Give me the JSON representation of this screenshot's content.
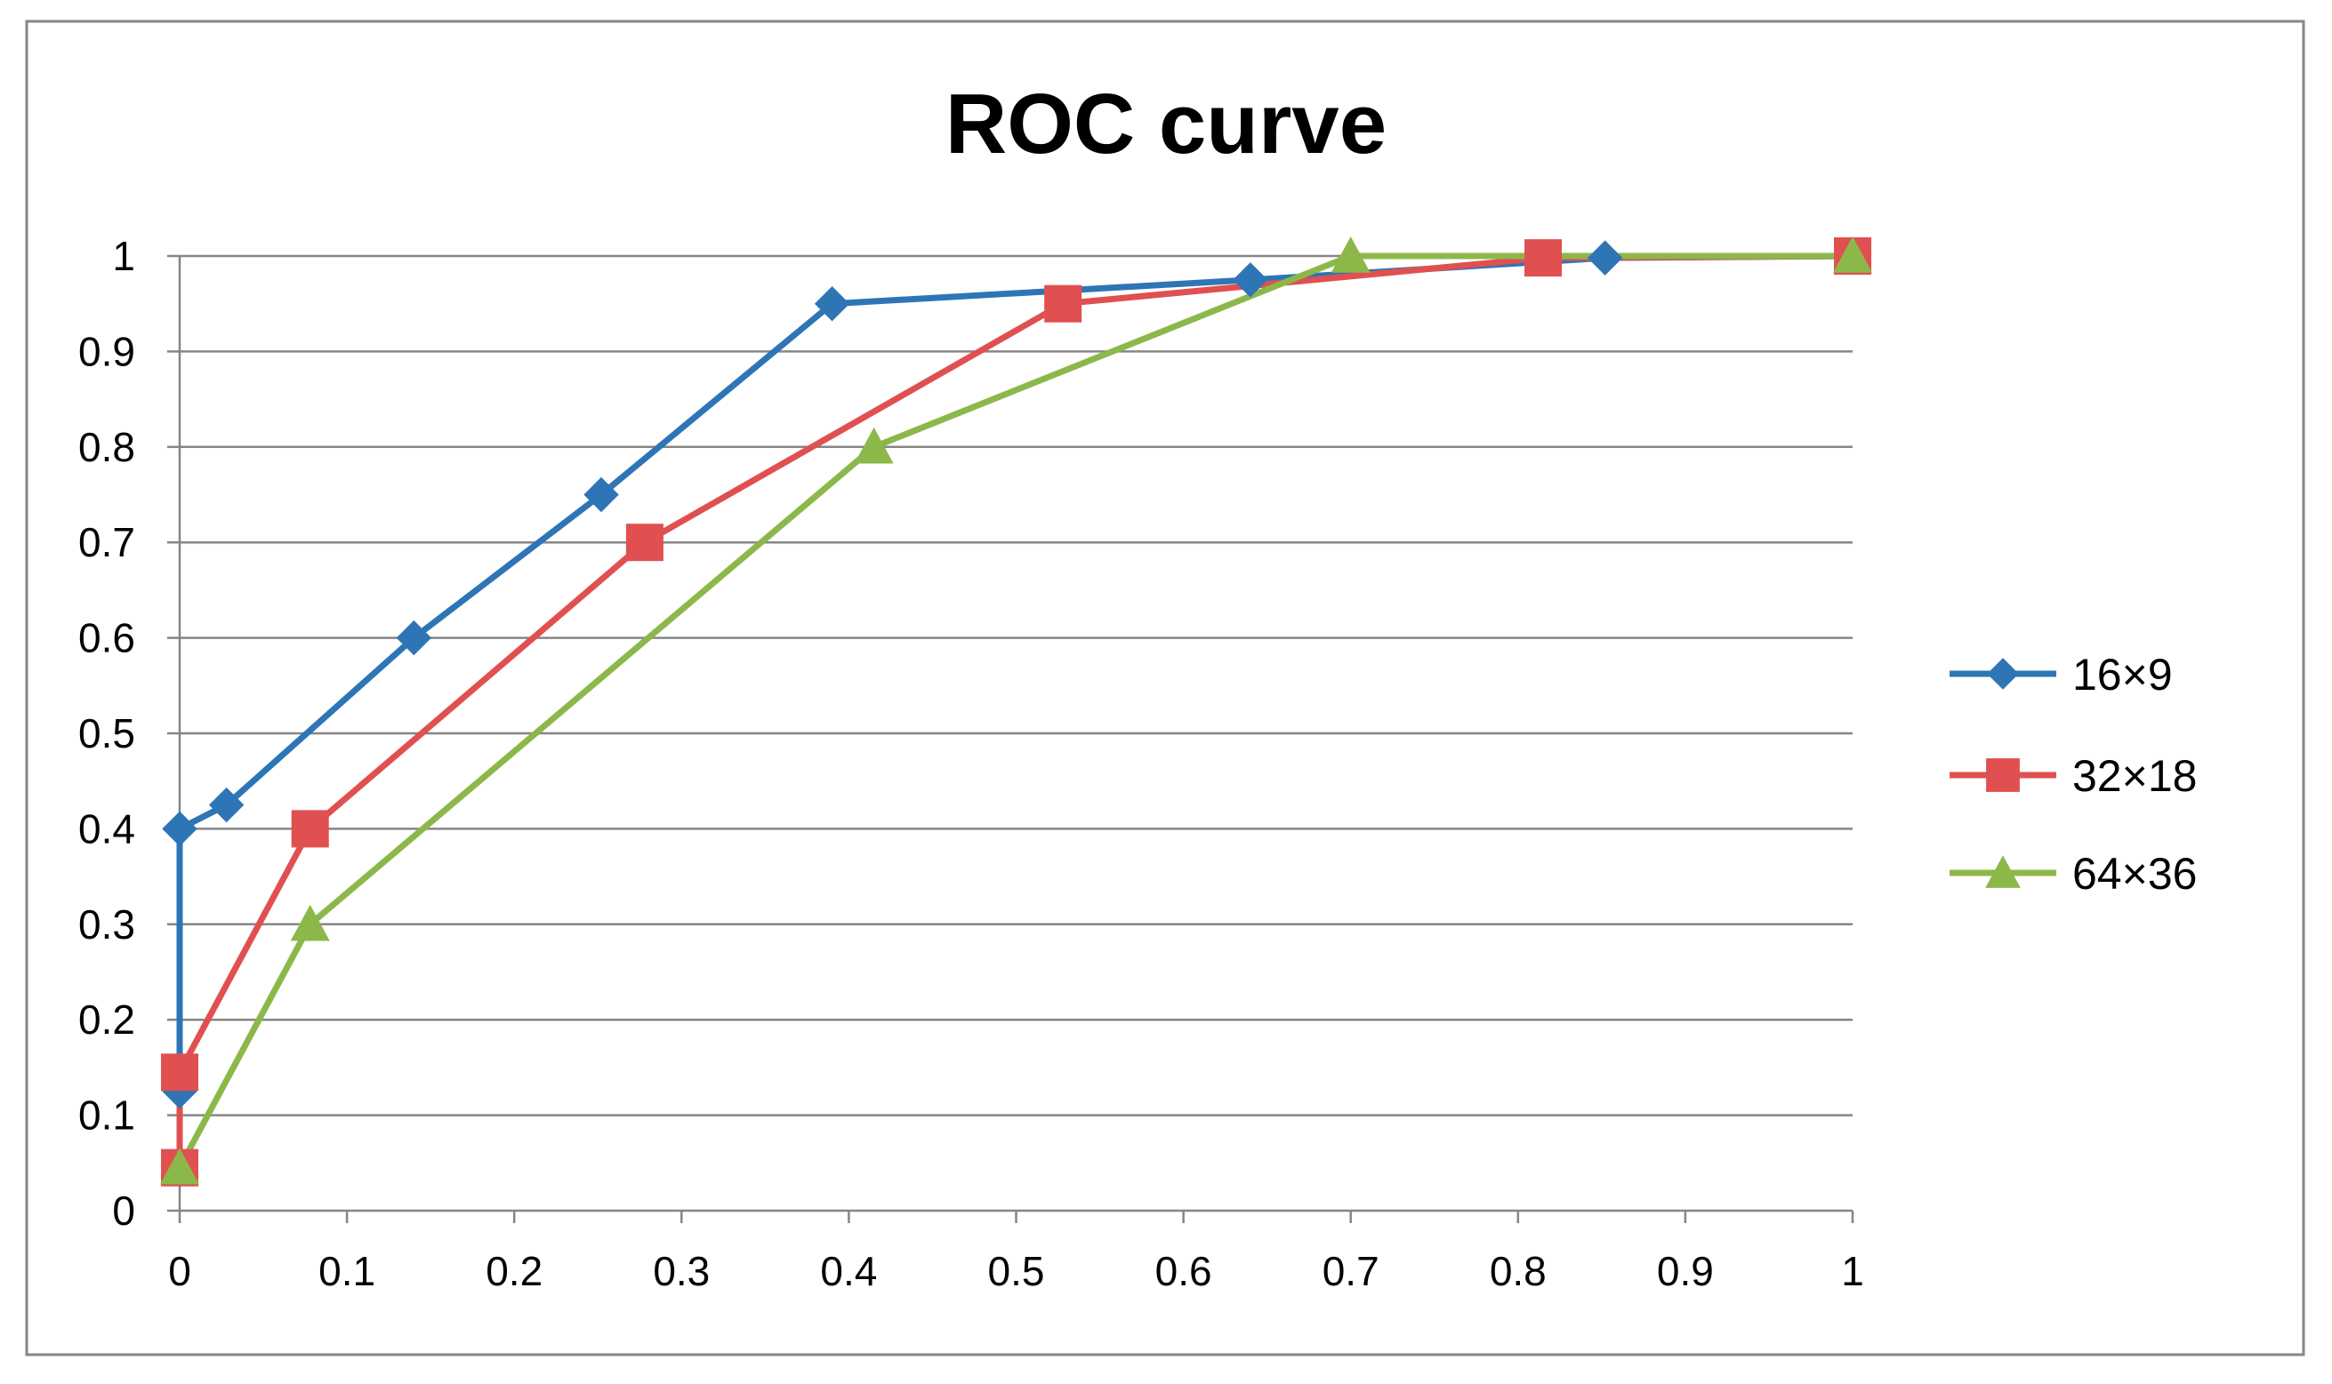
{
  "chart_data": {
    "type": "line",
    "title": "ROC curve",
    "xlabel": "",
    "ylabel": "",
    "xlim": [
      0,
      1
    ],
    "ylim": [
      0,
      1
    ],
    "x_ticks": [
      "0",
      "0.1",
      "0.2",
      "0.3",
      "0.4",
      "0.5",
      "0.6",
      "0.7",
      "0.8",
      "0.9",
      "1"
    ],
    "y_ticks": [
      "0",
      "0.1",
      "0.2",
      "0.3",
      "0.4",
      "0.5",
      "0.6",
      "0.7",
      "0.8",
      "0.9",
      "1"
    ],
    "grid": "horizontal",
    "legend_position": "right",
    "series": [
      {
        "name": "16×9",
        "color": "#2e75b6",
        "marker": "diamond",
        "points": [
          {
            "x": 0.0,
            "y": 0.125
          },
          {
            "x": 0.0,
            "y": 0.4
          },
          {
            "x": 0.028,
            "y": 0.425
          },
          {
            "x": 0.14,
            "y": 0.6
          },
          {
            "x": 0.252,
            "y": 0.75
          },
          {
            "x": 0.39,
            "y": 0.95
          },
          {
            "x": 0.64,
            "y": 0.975
          },
          {
            "x": 0.852,
            "y": 0.998
          },
          {
            "x": 1.0,
            "y": 1.0
          }
        ]
      },
      {
        "name": "32×18",
        "color": "#e05050",
        "marker": "square",
        "points": [
          {
            "x": 0.0,
            "y": 0.045
          },
          {
            "x": 0.0,
            "y": 0.145
          },
          {
            "x": 0.078,
            "y": 0.4
          },
          {
            "x": 0.278,
            "y": 0.7
          },
          {
            "x": 0.528,
            "y": 0.95
          },
          {
            "x": 0.815,
            "y": 0.998
          },
          {
            "x": 1.0,
            "y": 1.0
          }
        ]
      },
      {
        "name": "64×36",
        "color": "#8cb84a",
        "marker": "triangle",
        "points": [
          {
            "x": 0.0,
            "y": 0.045
          },
          {
            "x": 0.078,
            "y": 0.3
          },
          {
            "x": 0.415,
            "y": 0.8
          },
          {
            "x": 0.7,
            "y": 1.0
          },
          {
            "x": 1.0,
            "y": 1.0
          }
        ]
      }
    ]
  }
}
